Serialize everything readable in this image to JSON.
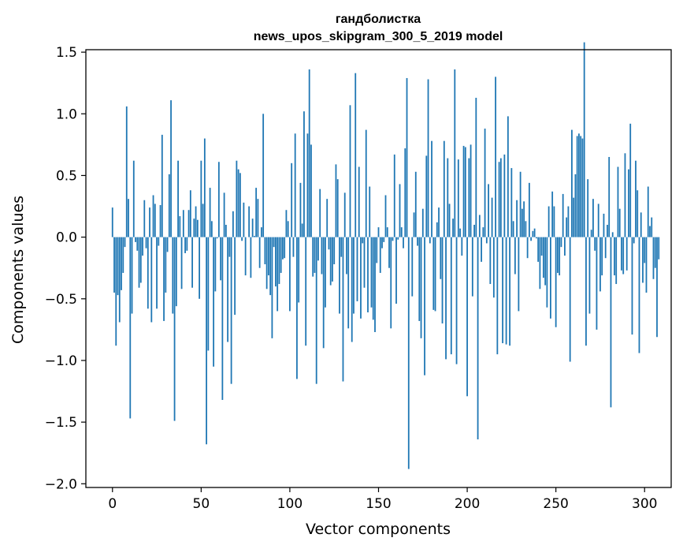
{
  "chart_data": {
    "type": "bar",
    "title": "гандболистка",
    "subtitle": "news_upos_skipgram_300_5_2019 model",
    "xlabel": "Vector components",
    "ylabel": "Components values",
    "xlim": [
      -15,
      315
    ],
    "ylim": [
      -2.03,
      1.52
    ],
    "xticks": [
      0,
      50,
      100,
      150,
      200,
      250,
      300
    ],
    "yticks": [
      -2.0,
      -1.5,
      -1.0,
      -0.5,
      0.0,
      0.5,
      1.0,
      1.5
    ],
    "xtick_labels": [
      "0",
      "50",
      "100",
      "150",
      "200",
      "250",
      "300"
    ],
    "ytick_labels": [
      "−2.0",
      "−1.5",
      "−1.0",
      "−0.5",
      "0.0",
      "0.5",
      "1.0",
      "1.5"
    ],
    "bar_color": "#1f77b4",
    "grid": false,
    "legend": "none",
    "values": [
      0.24,
      -0.45,
      -0.88,
      -0.47,
      -0.69,
      -0.43,
      -0.29,
      -0.08,
      1.06,
      0.31,
      -1.47,
      -0.62,
      0.62,
      -0.04,
      -0.11,
      -0.41,
      -0.37,
      -0.15,
      0.3,
      -0.09,
      -0.58,
      0.24,
      -0.69,
      0.34,
      0.27,
      -0.58,
      -0.07,
      0.26,
      0.83,
      -0.68,
      -0.45,
      -0.12,
      0.51,
      1.11,
      -0.62,
      -1.49,
      -0.56,
      0.62,
      0.17,
      -0.42,
      0.22,
      -0.13,
      -0.11,
      0.22,
      0.38,
      -0.41,
      0.15,
      0.25,
      0.14,
      -0.5,
      0.62,
      0.27,
      0.8,
      -1.68,
      -0.92,
      0.4,
      0.13,
      -1.05,
      -0.44,
      -0.01,
      0.61,
      -0.35,
      -1.32,
      0.36,
      0.1,
      -0.85,
      -0.16,
      -1.19,
      0.21,
      -0.63,
      0.62,
      0.55,
      0.52,
      -0.03,
      0.28,
      -0.31,
      0.0,
      0.25,
      -0.33,
      0.15,
      0.01,
      0.4,
      0.31,
      -0.25,
      0.08,
      1.0,
      -0.22,
      -0.42,
      -0.31,
      -0.47,
      -0.82,
      -0.08,
      -0.4,
      -0.6,
      -0.38,
      -0.29,
      -0.18,
      -0.17,
      0.22,
      0.13,
      -0.6,
      0.6,
      -0.16,
      0.84,
      -1.15,
      -0.53,
      0.44,
      0.11,
      1.02,
      -0.88,
      0.84,
      1.36,
      0.75,
      -0.32,
      -0.29,
      -1.19,
      -0.19,
      0.39,
      -0.3,
      -0.9,
      -0.57,
      0.31,
      -0.1,
      -0.39,
      -0.36,
      -0.22,
      0.59,
      0.47,
      -0.62,
      -0.16,
      -1.17,
      0.36,
      -0.3,
      -0.74,
      1.07,
      -0.85,
      -0.62,
      1.33,
      -0.52,
      0.57,
      -0.66,
      -0.05,
      -0.41,
      0.87,
      -0.61,
      0.41,
      -0.57,
      -0.67,
      -0.77,
      -0.21,
      0.08,
      -0.29,
      -0.09,
      -0.04,
      0.34,
      0.08,
      -0.25,
      -0.74,
      -0.03,
      0.67,
      -0.54,
      -0.02,
      0.43,
      0.08,
      -0.09,
      0.72,
      1.29,
      -1.88,
      0.0,
      -0.48,
      0.2,
      0.53,
      -0.07,
      -0.68,
      -0.82,
      0.23,
      -1.12,
      0.66,
      1.28,
      -0.05,
      0.78,
      -0.59,
      -0.6,
      0.12,
      0.24,
      -0.34,
      -0.7,
      0.78,
      -0.99,
      0.64,
      0.27,
      -0.95,
      0.15,
      1.36,
      -1.03,
      0.63,
      0.07,
      -0.15,
      0.74,
      0.73,
      -1.29,
      0.64,
      0.75,
      -0.48,
      0.1,
      1.13,
      -1.64,
      0.18,
      -0.2,
      0.08,
      0.88,
      -0.05,
      0.43,
      -0.38,
      0.32,
      -0.49,
      1.3,
      -0.95,
      0.61,
      0.64,
      -0.86,
      0.67,
      -0.87,
      0.98,
      -0.88,
      0.56,
      0.13,
      -0.3,
      0.3,
      -0.6,
      0.53,
      0.23,
      0.29,
      0.13,
      -0.17,
      0.44,
      -0.03,
      0.05,
      0.07,
      -0.01,
      -0.2,
      -0.42,
      -0.15,
      -0.33,
      -0.39,
      -0.57,
      0.25,
      -0.66,
      0.37,
      0.25,
      -0.73,
      -0.29,
      -0.31,
      -0.08,
      0.35,
      -0.15,
      0.16,
      0.25,
      -1.01,
      0.87,
      0.32,
      0.51,
      0.82,
      0.84,
      0.82,
      0.8,
      1.58,
      -0.88,
      0.47,
      -0.62,
      0.06,
      0.31,
      -0.11,
      -0.75,
      0.27,
      -0.44,
      -0.31,
      0.19,
      -0.17,
      0.1,
      0.65,
      -1.38,
      0.04,
      -0.31,
      -0.38,
      0.57,
      0.23,
      -0.27,
      -0.3,
      0.68,
      -0.27,
      0.55,
      0.92,
      -0.79,
      -0.05,
      0.62,
      0.38,
      -0.94,
      0.2,
      -0.37,
      -0.21,
      -0.45,
      0.41,
      0.09,
      0.16,
      -0.34,
      -0.25,
      -0.81,
      -0.18
    ]
  }
}
